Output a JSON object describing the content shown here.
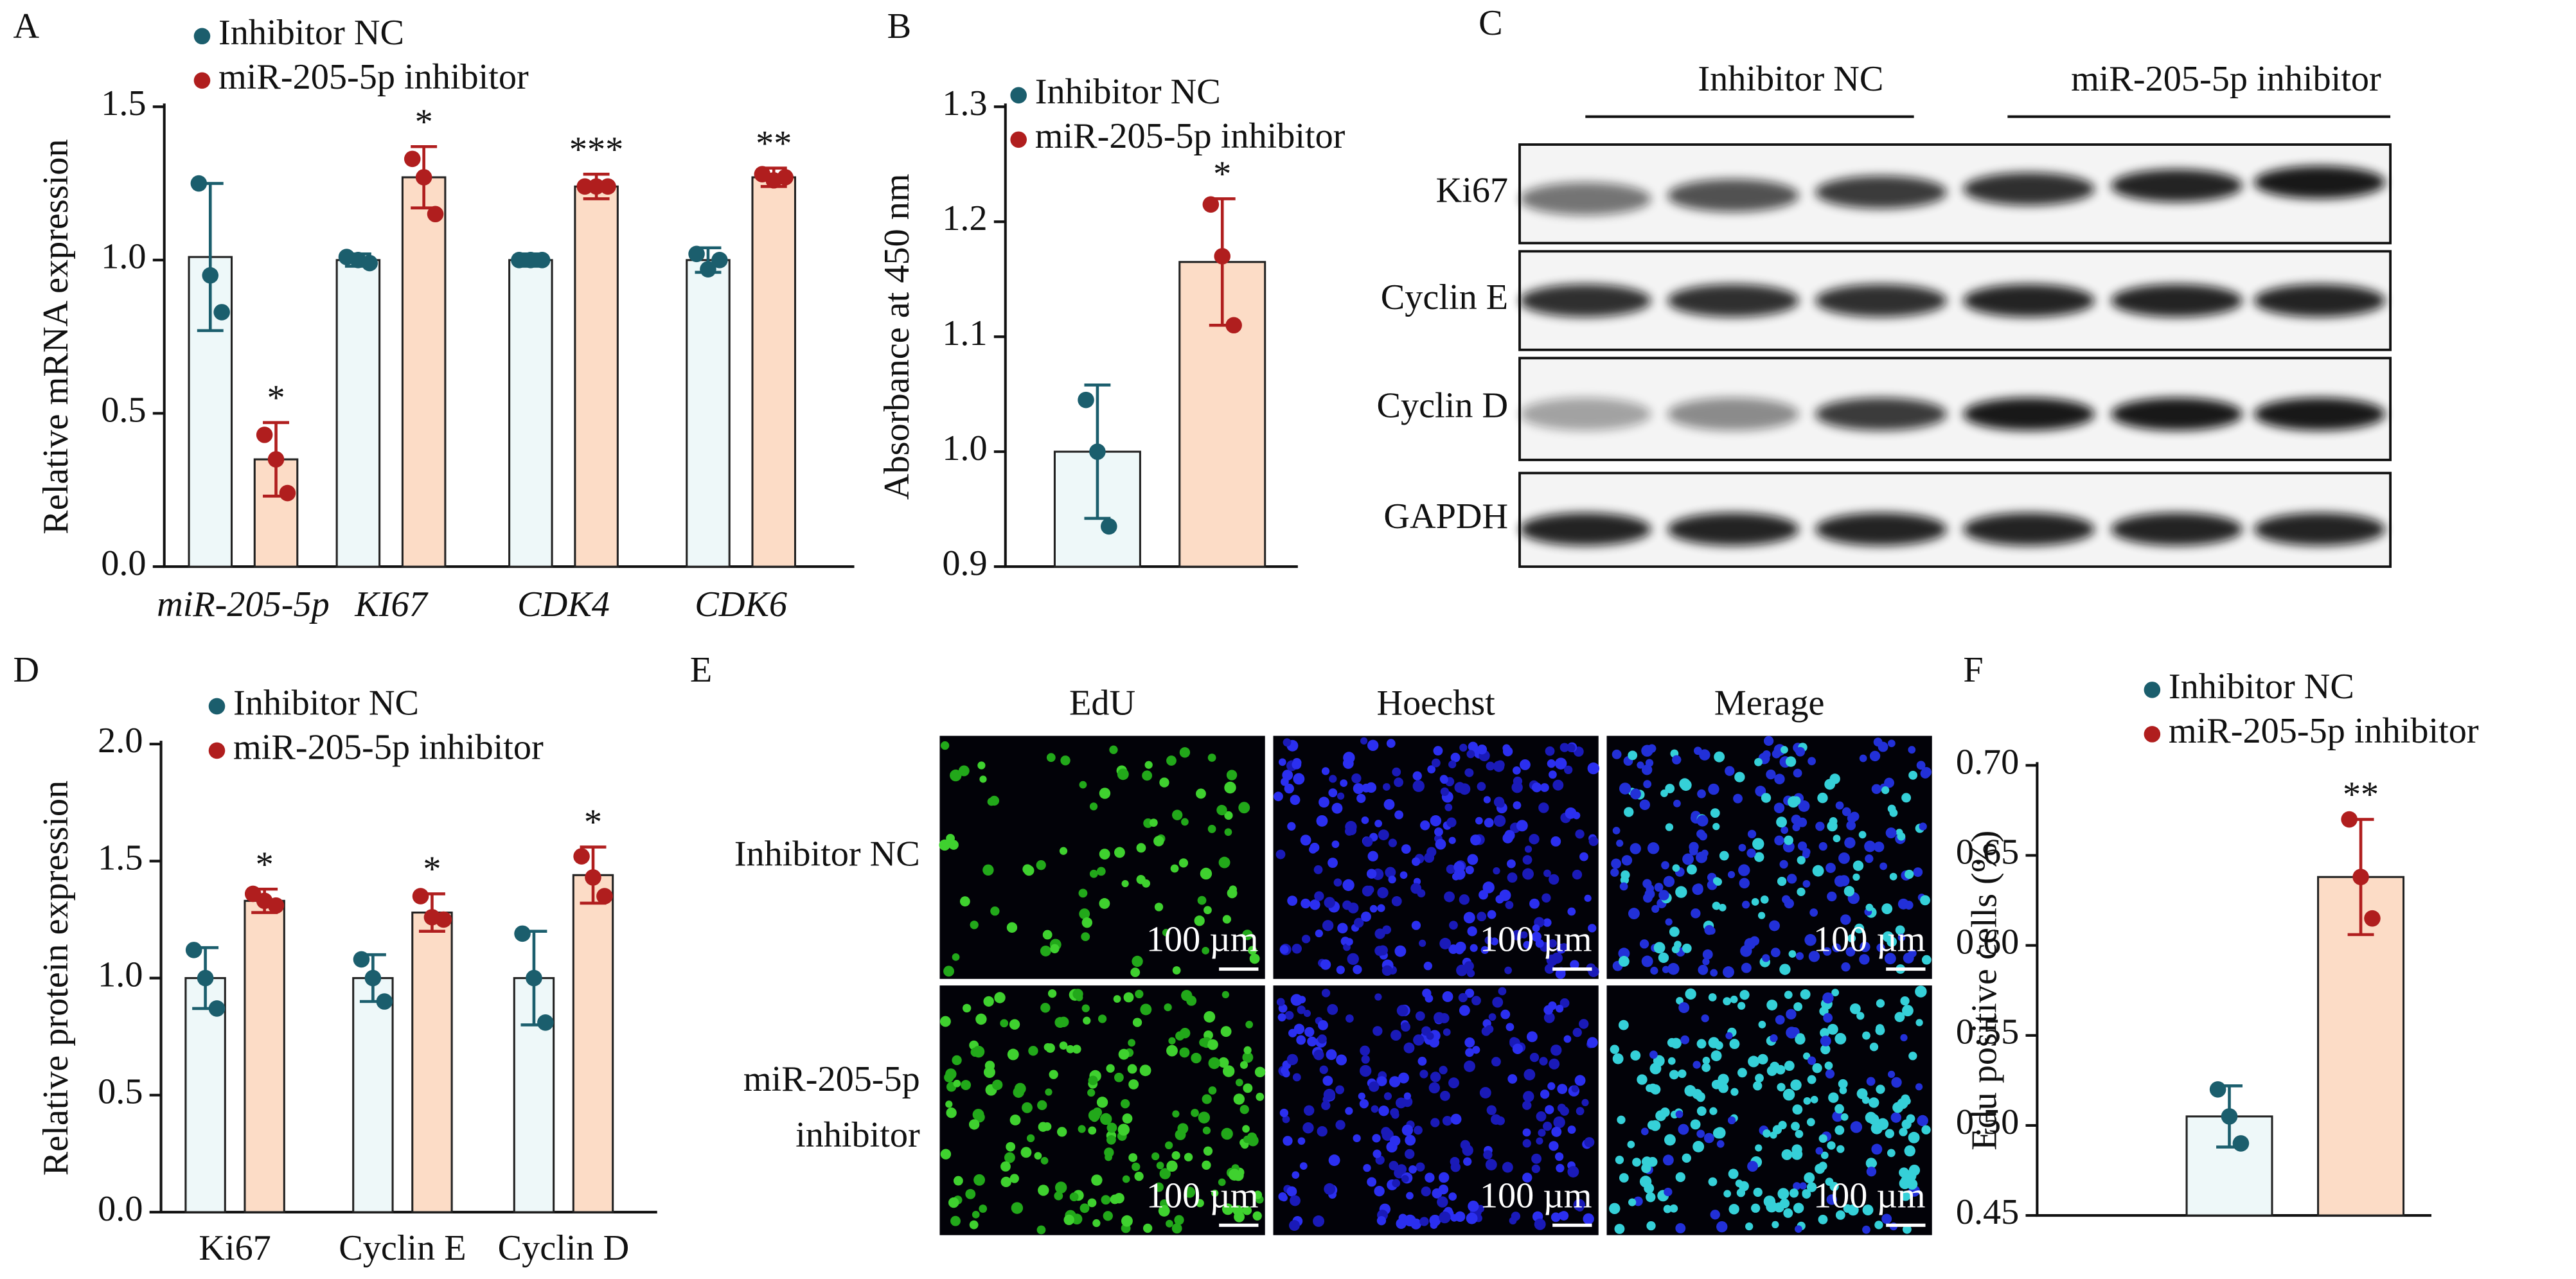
{
  "chart_data": [
    {
      "panel": "A",
      "type": "bar",
      "y_label": "Relative mRNA expression",
      "categories": [
        "miR-205-5p",
        "KI67",
        "CDK4",
        "CDK6"
      ],
      "category_style": "italic",
      "ylim": [
        0,
        1.5
      ],
      "yticks": [
        {
          "value": 0,
          "label": "0.0"
        },
        0.5,
        {
          "value": 1,
          "label": "1.0"
        },
        1.5
      ],
      "series": [
        {
          "name": "Inhibitor NC",
          "color": "#1b5e6d",
          "fill": "#eef8f9",
          "values": [
            1.01,
            1.0,
            1.0,
            1.0
          ],
          "errors": [
            0.24,
            0.02,
            0.02,
            0.04
          ],
          "points": [
            [
              1.25,
              0.95,
              0.83
            ],
            [
              1.01,
              1.0,
              0.99
            ],
            [
              1.0,
              1.0,
              1.0
            ],
            [
              1.02,
              0.97,
              1.0
            ]
          ]
        },
        {
          "name": "miR-205-5p inhibitor",
          "color": "#b01e1e",
          "fill": "#fcdcc6",
          "values": [
            0.35,
            1.27,
            1.24,
            1.27
          ],
          "errors": [
            0.12,
            0.1,
            0.04,
            0.03
          ],
          "points": [
            [
              0.43,
              0.35,
              0.24
            ],
            [
              1.33,
              1.27,
              1.15
            ],
            [
              1.24,
              1.24,
              1.24
            ],
            [
              1.28,
              1.26,
              1.27
            ]
          ],
          "significance": [
            "*",
            "*",
            "***",
            "**"
          ]
        }
      ]
    },
    {
      "panel": "B",
      "type": "bar",
      "y_label": "Absorbance at 450 nm",
      "ylim": [
        0.9,
        1.3
      ],
      "yticks": [
        0.9,
        {
          "value": 1,
          "label": "1.0"
        },
        1.1,
        1.2,
        1.3
      ],
      "series": [
        {
          "name": "Inhibitor NC",
          "color": "#1b5e6d",
          "fill": "#eef8f9",
          "values": [
            1.0
          ],
          "errors": [
            0.058
          ],
          "points": [
            [
              1.045,
              1.0,
              0.935
            ]
          ]
        },
        {
          "name": "miR-205-5p inhibitor",
          "color": "#b01e1e",
          "fill": "#fcdcc6",
          "values": [
            1.165
          ],
          "errors": [
            0.055
          ],
          "points": [
            [
              1.215,
              1.17,
              1.11
            ]
          ],
          "significance": [
            "*"
          ]
        }
      ]
    },
    {
      "panel": "D",
      "type": "bar",
      "y_label": "Relative protein expression",
      "categories": [
        "Ki67",
        "Cyclin E",
        "Cyclin D"
      ],
      "ylim": [
        0,
        2
      ],
      "yticks": [
        {
          "value": 0,
          "label": "0.0"
        },
        0.5,
        {
          "value": 1,
          "label": "1.0"
        },
        1.5,
        {
          "value": 2,
          "label": "2.0"
        }
      ],
      "series": [
        {
          "name": "Inhibitor NC",
          "color": "#1b5e6d",
          "fill": "#eef8f9",
          "values": [
            1.0,
            1.0,
            1.0
          ],
          "errors": [
            0.13,
            0.1,
            0.2
          ],
          "points": [
            [
              1.12,
              1.0,
              0.87
            ],
            [
              1.08,
              1.0,
              0.9
            ],
            [
              1.19,
              1.0,
              0.81
            ]
          ]
        },
        {
          "name": "miR-205-5p inhibitor",
          "color": "#b01e1e",
          "fill": "#fcdcc6",
          "values": [
            1.33,
            1.28,
            1.44
          ],
          "errors": [
            0.05,
            0.08,
            0.12
          ],
          "points": [
            [
              1.36,
              1.33,
              1.31
            ],
            [
              1.35,
              1.26,
              1.25
            ],
            [
              1.52,
              1.43,
              1.35
            ]
          ],
          "significance": [
            "*",
            "*",
            "*"
          ]
        }
      ]
    },
    {
      "panel": "F",
      "type": "bar",
      "y_label": "Edu positive cells (%)",
      "ylim": [
        0.45,
        0.7
      ],
      "yticks": [
        0.45,
        {
          "value": 0.5,
          "label": "0.50"
        },
        0.55,
        {
          "value": 0.6,
          "label": "0.60"
        },
        0.65,
        {
          "value": 0.7,
          "label": "0.70"
        }
      ],
      "series": [
        {
          "name": "Inhibitor NC",
          "color": "#1b5e6d",
          "fill": "#eef8f9",
          "values": [
            0.505
          ],
          "errors": [
            0.017
          ],
          "points": [
            [
              0.52,
              0.505,
              0.49
            ]
          ]
        },
        {
          "name": "miR-205-5p inhibitor",
          "color": "#b01e1e",
          "fill": "#fcdcc6",
          "values": [
            0.638
          ],
          "errors": [
            0.032
          ],
          "points": [
            [
              0.67,
              0.638,
              0.615
            ]
          ],
          "significance": [
            "**"
          ]
        }
      ]
    }
  ],
  "blot": {
    "panel": "C",
    "groups": [
      "Inhibitor NC",
      "miR-205-5p inhibitor"
    ],
    "rows": [
      "Ki67",
      "Cyclin E",
      "Cyclin D",
      "GAPDH"
    ]
  },
  "microscopy": {
    "panel": "E",
    "columns": [
      "EdU",
      "Hoechst",
      "Merage"
    ],
    "rows": [
      [
        "Inhibitor NC"
      ],
      [
        "miR-205-5p",
        "inhibitor"
      ]
    ],
    "scale_bar": "100 µm"
  }
}
